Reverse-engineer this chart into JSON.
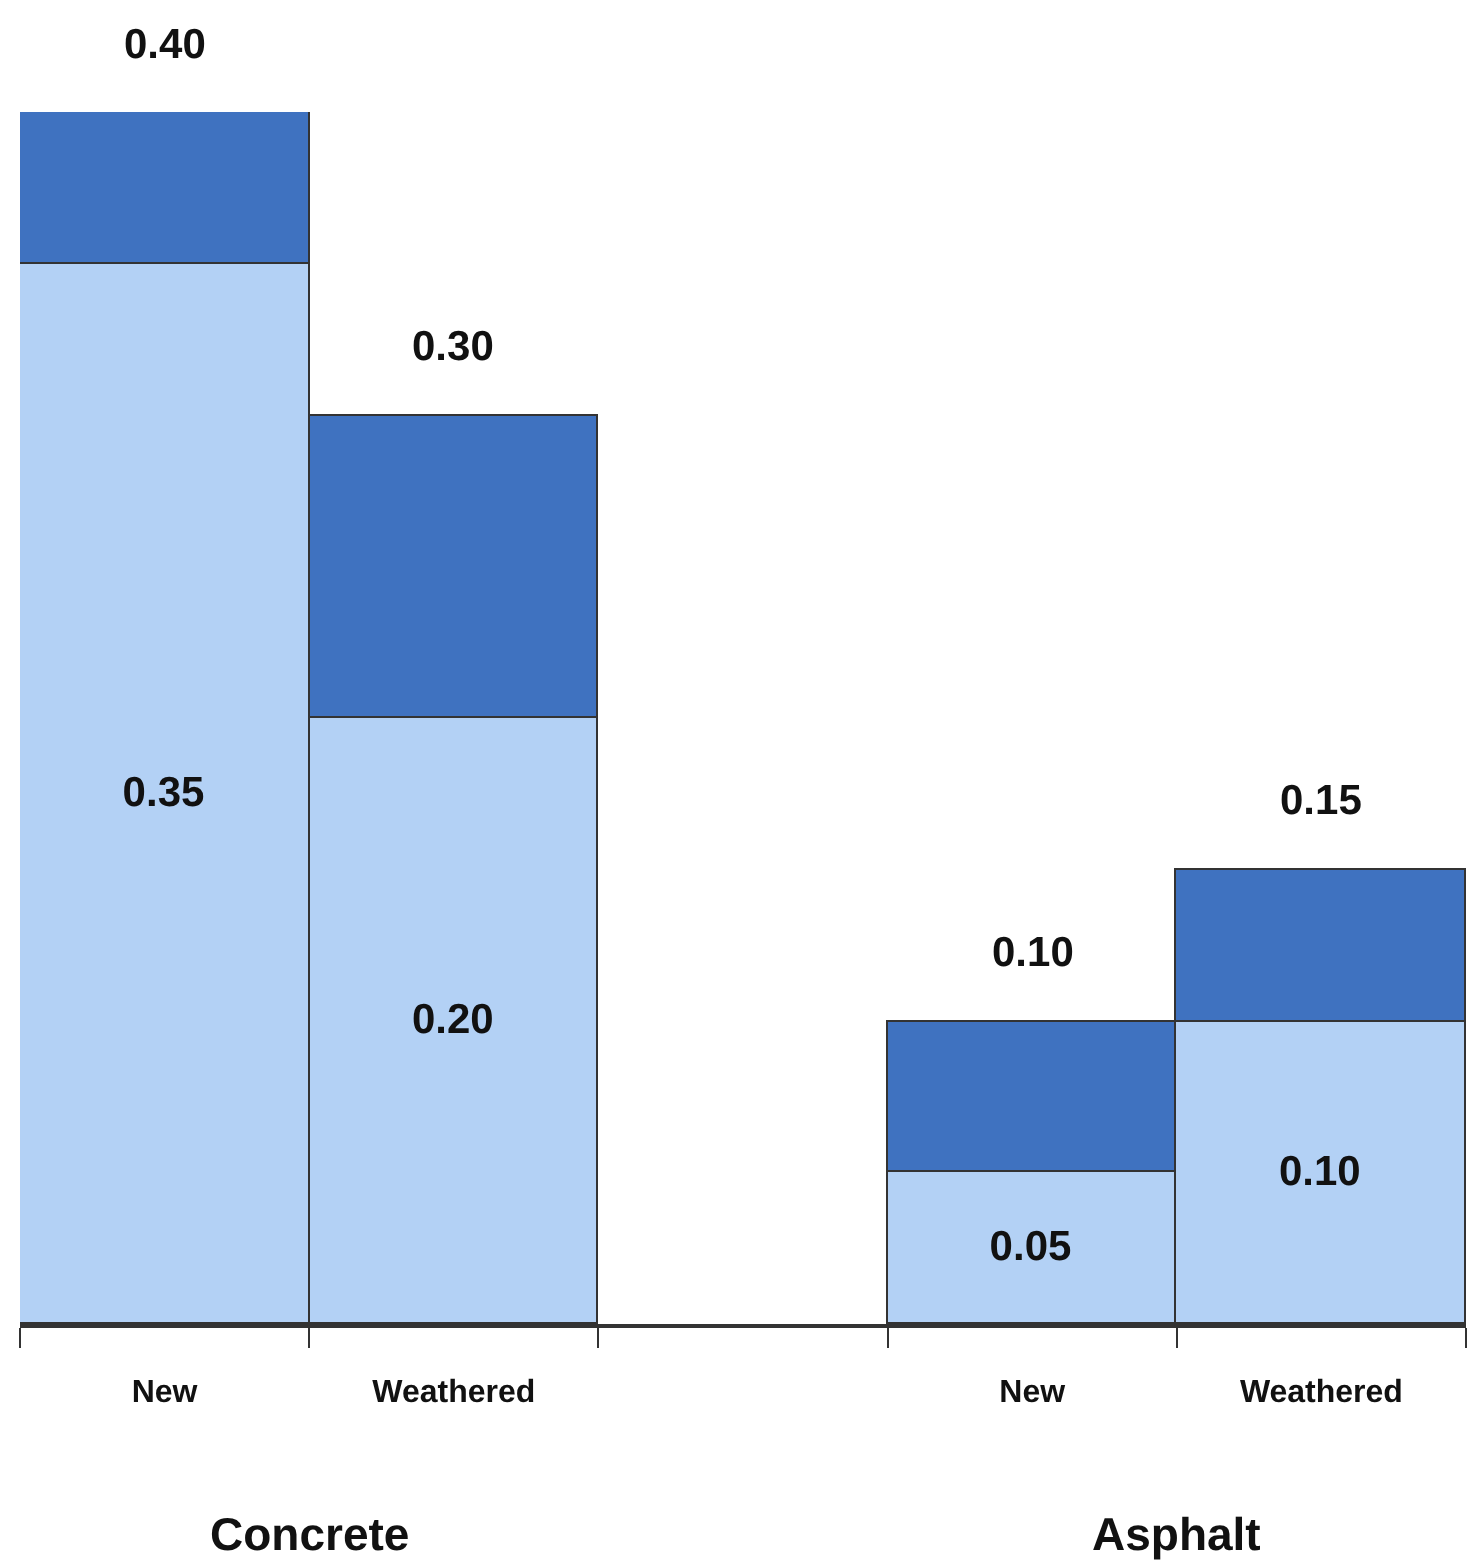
{
  "chart_data": {
    "type": "bar",
    "stacked": true,
    "categories": [
      "New",
      "Weathered",
      null,
      "New",
      "Weathered"
    ],
    "series": [
      {
        "color": "#b3d1f5",
        "values": [
          0.35,
          0.2,
          null,
          0.05,
          0.1
        ],
        "value_labels": [
          "0.35",
          "0.20",
          null,
          "0.05",
          "0.10"
        ]
      },
      {
        "color": "#3f72c0",
        "values": [
          0.05,
          0.1,
          null,
          0.05,
          0.05
        ]
      }
    ],
    "totals": [
      "0.40",
      "0.30",
      null,
      "0.10",
      "0.15"
    ],
    "annotations": [
      "Concrete",
      "Asphalt"
    ],
    "ylim": [
      0,
      0.4
    ],
    "tick_labels": "x"
  }
}
